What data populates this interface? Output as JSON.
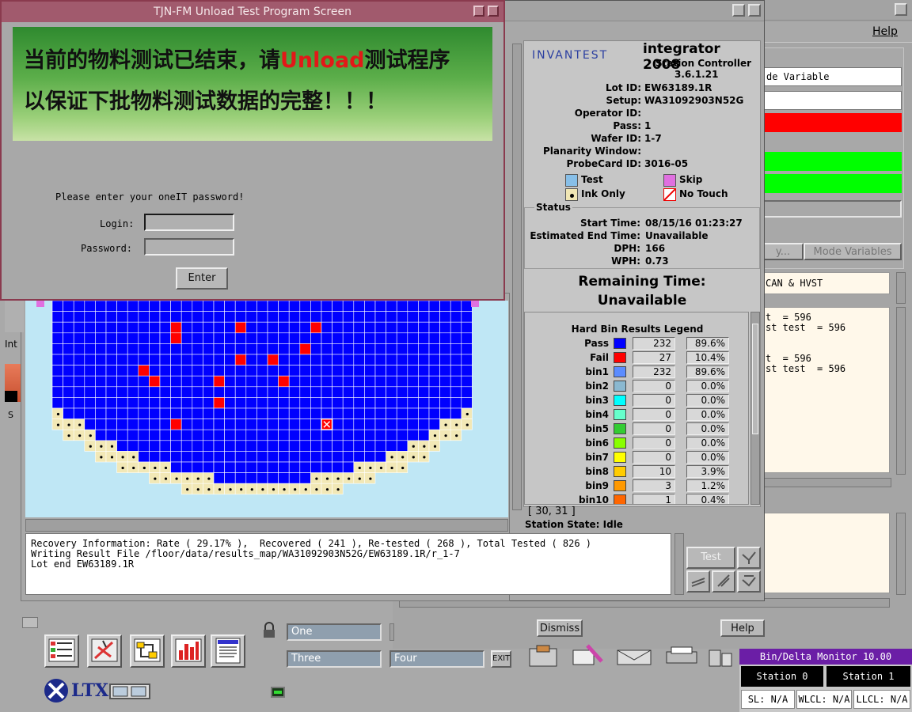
{
  "right_window": {
    "menu_help": "Help",
    "field_mode_variable": "de Variable",
    "btn_history": "y...",
    "btn_mode_variables": "Mode Variables",
    "text_can_hvst": "CAN & HVST",
    "text_lines": [
      "t  = 596",
      "st test  = 596",
      "",
      "t  = 596",
      "st test  = 596"
    ],
    "btn_dismiss": "Dismiss",
    "btn_help": "Help",
    "colors": {
      "red": "#ff0000",
      "green": "#00ff00"
    }
  },
  "integrator": {
    "brand": "INVANTEST",
    "title": "integrator 2008",
    "subtitle": "Station Controller",
    "version": "3.6.1.21",
    "info": [
      {
        "k": "Lot ID:",
        "v": "EW63189.1R"
      },
      {
        "k": "Setup:",
        "v": "WA31092903N52G"
      },
      {
        "k": "Operator ID:",
        "v": ""
      },
      {
        "k": "Pass:",
        "v": "1"
      },
      {
        "k": "Wafer ID:",
        "v": "1-7"
      },
      {
        "k": "Planarity Window:",
        "v": ""
      },
      {
        "k": "ProbeCard ID:",
        "v": "3016-05"
      }
    ],
    "legend": {
      "test": "Test",
      "skip": "Skip",
      "ink_only": "Ink Only",
      "no_touch": "No Touch",
      "colors": {
        "test": "#87bfe8",
        "skip": "#e070e0",
        "ink_only": "#f0e6b4"
      }
    },
    "status_label": "Status",
    "status": [
      {
        "k": "Start Time:",
        "v": "08/15/16 01:23:27"
      },
      {
        "k": "Estimated End Time:",
        "v": "Unavailable"
      },
      {
        "k": "DPH:",
        "v": "166"
      },
      {
        "k": "WPH:",
        "v": "0.73"
      }
    ],
    "remaining_label": "Remaining Time:",
    "remaining_value": "Unavailable",
    "bin_legend_title": "Hard Bin Results Legend",
    "bins": [
      {
        "name": "Pass",
        "color": "#0000ff",
        "count": "232",
        "pct": "89.6%"
      },
      {
        "name": "Fail",
        "color": "#ff0000",
        "count": "27",
        "pct": "10.4%"
      },
      {
        "name": "bin1",
        "color": "#5b8cff",
        "count": "232",
        "pct": "89.6%"
      },
      {
        "name": "bin2",
        "color": "#8ab8d0",
        "count": "0",
        "pct": "0.0%"
      },
      {
        "name": "bin3",
        "color": "#00ffff",
        "count": "0",
        "pct": "0.0%"
      },
      {
        "name": "bin4",
        "color": "#66ffcc",
        "count": "0",
        "pct": "0.0%"
      },
      {
        "name": "bin5",
        "color": "#33cc33",
        "count": "0",
        "pct": "0.0%"
      },
      {
        "name": "bin6",
        "color": "#88ff00",
        "count": "0",
        "pct": "0.0%"
      },
      {
        "name": "bin7",
        "color": "#ffff00",
        "count": "0",
        "pct": "0.0%"
      },
      {
        "name": "bin8",
        "color": "#ffcc00",
        "count": "10",
        "pct": "3.9%"
      },
      {
        "name": "bin9",
        "color": "#ff9900",
        "count": "3",
        "pct": "1.2%"
      },
      {
        "name": "bin10",
        "color": "#ff6600",
        "count": "1",
        "pct": "0.4%"
      }
    ],
    "coords": "[ 30, 31 ]",
    "station_state_label": "Station State:",
    "station_state_value": "Idle",
    "btn_test": "Test"
  },
  "unload": {
    "title": "TJN-FM Unload Test Program Screen",
    "banner_line1_a": "当前的物料测试已结束，请",
    "banner_line1_red": "Unload",
    "banner_line1_b": "测试程序",
    "banner_line2": "以保证下批物料测试数据的完整！！！",
    "prompt": "Please enter your oneIT password!",
    "login_label": "Login:",
    "password_label": "Password:",
    "login_value": "",
    "password_value": "",
    "enter_label": "Enter"
  },
  "wafer": {
    "colors": {
      "pass": "#0000ff",
      "fail": "#ff0000",
      "edge": "#f2e8b6",
      "bg": "#bfe7f5",
      "skip": "#e070e0"
    },
    "fail_cells": [
      [
        11,
        2
      ],
      [
        11,
        3
      ],
      [
        17,
        2
      ],
      [
        24,
        2
      ],
      [
        23,
        4
      ],
      [
        17,
        5
      ],
      [
        20,
        5
      ],
      [
        8,
        6
      ],
      [
        9,
        7
      ],
      [
        15,
        7
      ],
      [
        21,
        7
      ],
      [
        15,
        9
      ],
      [
        11,
        11
      ]
    ],
    "selected_cell": [
      25,
      11
    ]
  },
  "log": {
    "lines": [
      "Recovery Information: Rate ( 29.17% ),  Recovered ( 241 ), Re-tested ( 268 ), Total Tested ( 826 )",
      "",
      "Writing Result File /floor/data/results_map/WA31092903N52G/EW63189.1R/r_1-7",
      "Lot end EW63189.1R"
    ]
  },
  "dock": {
    "ws_one": "One",
    "ws_three": "Three",
    "ws_four": "Four",
    "exit": "EXIT",
    "logo": "LTX",
    "left_partial_1": "Int",
    "left_partial_2": "S"
  },
  "bin_delta_monitor": {
    "title": "Bin/Delta Monitor 10.00",
    "station0": "Station 0",
    "station1": "Station 1",
    "sl": "SL: N/A",
    "wlcl": "WLCL: N/A",
    "llcl": "LLCL: N/A"
  }
}
